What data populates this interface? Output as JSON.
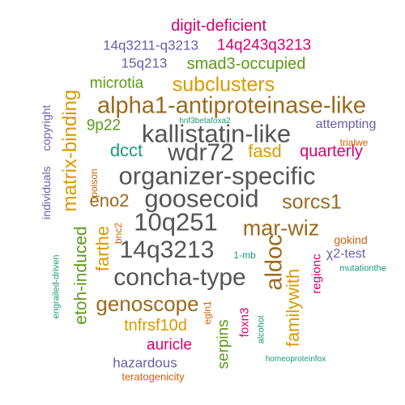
{
  "palette": {
    "gray": "#555555",
    "brown": "#9b6a1c",
    "orange": "#d99a00",
    "green": "#5a9a18",
    "magenta": "#d6006e",
    "purple": "#6a5ea8",
    "teal": "#1b9a77",
    "rust": "#d45f00"
  },
  "words": [
    {
      "text": "digit-deficient",
      "color": "magenta"
    },
    {
      "text": "14q3211-q3213",
      "color": "purple"
    },
    {
      "text": "14q243q3213",
      "color": "magenta"
    },
    {
      "text": "15q213",
      "color": "purple"
    },
    {
      "text": "smad3-occupied",
      "color": "green"
    },
    {
      "text": "microtia",
      "color": "green"
    },
    {
      "text": "subclusters",
      "color": "orange"
    },
    {
      "text": "alpha1-antiproteinase-like",
      "color": "brown"
    },
    {
      "text": "copyright",
      "color": "purple"
    },
    {
      "text": "hnf3betafoxa2",
      "color": "teal"
    },
    {
      "text": "9p22",
      "color": "green"
    },
    {
      "text": "kallistatin-like",
      "color": "gray"
    },
    {
      "text": "attempting",
      "color": "purple"
    },
    {
      "text": "dcct",
      "color": "teal"
    },
    {
      "text": "wdr72",
      "color": "gray"
    },
    {
      "text": "fasd",
      "color": "orange"
    },
    {
      "text": "quarterly",
      "color": "magenta"
    },
    {
      "text": "matrix-binding",
      "color": "orange"
    },
    {
      "text": "individuals",
      "color": "purple"
    },
    {
      "text": "poison",
      "color": "rust"
    },
    {
      "text": "organizer-specific",
      "color": "gray"
    },
    {
      "text": "eno2",
      "color": "brown"
    },
    {
      "text": "goosecoid",
      "color": "gray"
    },
    {
      "text": "sorcs1",
      "color": "brown"
    },
    {
      "text": "10q251",
      "color": "gray"
    },
    {
      "text": "mar-wiz",
      "color": "brown"
    },
    {
      "text": "farthe",
      "color": "orange"
    },
    {
      "text": "bnc2",
      "color": "rust"
    },
    {
      "text": "etoh-induced",
      "color": "green"
    },
    {
      "text": "engrailed-driven",
      "color": "teal"
    },
    {
      "text": "14q3213",
      "color": "gray"
    },
    {
      "text": "aldoc",
      "color": "brown"
    },
    {
      "text": "gokind",
      "color": "rust"
    },
    {
      "text": "1-mb",
      "color": "teal"
    },
    {
      "text": "χ2-test",
      "color": "purple"
    },
    {
      "text": "regionc",
      "color": "magenta"
    },
    {
      "text": "mutationthe",
      "color": "teal"
    },
    {
      "text": "concha-type",
      "color": "gray"
    },
    {
      "text": "familywith",
      "color": "orange"
    },
    {
      "text": "genoscope",
      "color": "brown"
    },
    {
      "text": "foxn3",
      "color": "magenta"
    },
    {
      "text": "egln1",
      "color": "rust"
    },
    {
      "text": "tnfrsf10d",
      "color": "orange"
    },
    {
      "text": "alcohol",
      "color": "teal"
    },
    {
      "text": "auricle",
      "color": "magenta"
    },
    {
      "text": "serpins",
      "color": "green"
    },
    {
      "text": "hazardous",
      "color": "purple"
    },
    {
      "text": "homeoproteinfox",
      "color": "teal"
    },
    {
      "text": "teratogenicity",
      "color": "rust"
    },
    {
      "text": "trialwe",
      "color": "rust"
    }
  ]
}
